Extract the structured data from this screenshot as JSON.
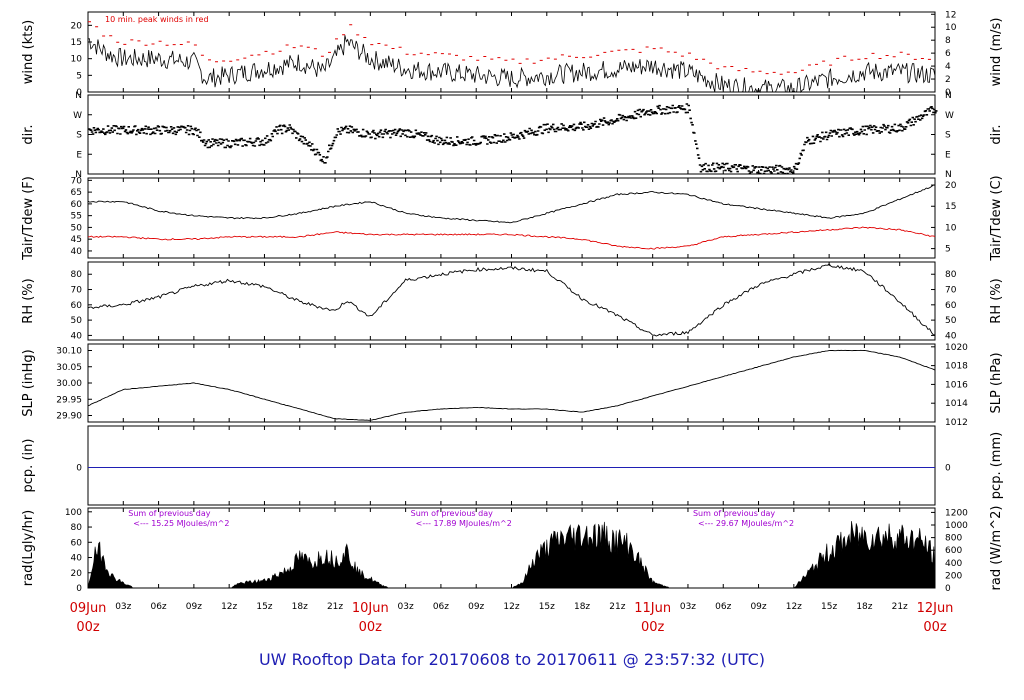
{
  "title": "UW Rooftop Data for 20170608  to  20170611 @ 23:57:32  (UTC)",
  "colors": {
    "black": "#000000",
    "red": "#e00000",
    "blue": "#1f1fb4",
    "purple": "#a000d0",
    "date_red": "#d00000"
  },
  "x_axis": {
    "hour_ticks": [
      "03z",
      "06z",
      "09z",
      "12z",
      "15z",
      "18z",
      "21z",
      "03z",
      "06z",
      "09z",
      "12z",
      "15z",
      "18z",
      "21z",
      "03z",
      "06z",
      "09z",
      "12z",
      "15z",
      "18z",
      "21z"
    ],
    "hour_values": [
      3,
      6,
      9,
      12,
      15,
      18,
      21,
      27,
      30,
      33,
      36,
      39,
      42,
      45,
      51,
      54,
      57,
      60,
      63,
      66,
      69
    ],
    "date_labels": [
      {
        "date": "09Jun",
        "time": "00z",
        "hour": 0
      },
      {
        "date": "10Jun",
        "time": "00z",
        "hour": 24
      },
      {
        "date": "11Jun",
        "time": "00z",
        "hour": 48
      },
      {
        "date": "12Jun",
        "time": "00z",
        "hour": 72
      }
    ]
  },
  "chart_data": [
    {
      "type": "line",
      "id": "wind",
      "ylabel_left": "wind (kts)",
      "ylabel_right": "wind (m/s)",
      "ylim": [
        0,
        24
      ],
      "left_ticks": [
        0,
        5,
        10,
        15,
        20
      ],
      "right_ticks": [
        0,
        2,
        4,
        6,
        8,
        10,
        12
      ],
      "annotation": "10 min. peak winds in red",
      "series": [
        {
          "hours": [
            0,
            1,
            2,
            3,
            6,
            9,
            10,
            12,
            15,
            18,
            20,
            21,
            22,
            24,
            27,
            30,
            36,
            42,
            48,
            51,
            54,
            57,
            60,
            63,
            66,
            69,
            72
          ],
          "values": [
            16,
            13,
            11,
            10,
            10,
            9,
            4,
            5,
            7,
            9,
            6,
            10,
            15,
            10,
            7,
            6,
            4,
            6,
            8,
            6,
            2,
            1,
            1,
            4,
            6,
            6,
            5
          ]
        }
      ]
    },
    {
      "type": "scatter",
      "id": "dir",
      "ylabel_left": "dir.",
      "ylabel_right": "dir.",
      "categories": [
        "N",
        "E",
        "S",
        "W",
        "N"
      ],
      "ylim": [
        0,
        360
      ],
      "series": [
        {
          "hours": [
            0,
            3,
            6,
            9,
            10,
            12,
            15,
            16,
            17,
            18,
            19,
            20,
            21,
            22,
            24,
            27,
            30,
            33,
            36,
            39,
            42,
            45,
            48,
            51,
            52,
            54,
            57,
            60,
            61,
            63,
            66,
            69,
            72
          ],
          "values": [
            200,
            200,
            200,
            200,
            140,
            140,
            150,
            200,
            210,
            160,
            120,
            60,
            190,
            200,
            180,
            190,
            150,
            150,
            170,
            210,
            215,
            250,
            290,
            300,
            30,
            30,
            20,
            20,
            150,
            180,
            200,
            210,
            300
          ]
        }
      ]
    },
    {
      "type": "line",
      "id": "temp",
      "ylabel_left": "Tair/Tdew (F)",
      "ylabel_right": "Tair/Tdew (C)",
      "ylim": [
        37,
        71
      ],
      "left_ticks": [
        40,
        45,
        50,
        55,
        60,
        65,
        70
      ],
      "right_ticks": [
        5,
        10,
        15,
        20
      ],
      "series": [
        {
          "hours": [
            0,
            3,
            6,
            9,
            12,
            15,
            18,
            21,
            24,
            27,
            30,
            33,
            36,
            39,
            42,
            45,
            48,
            51,
            54,
            57,
            60,
            63,
            66,
            69,
            72
          ],
          "values": [
            61,
            61,
            57,
            55,
            54,
            54,
            56,
            59,
            61,
            56,
            54,
            53,
            52,
            56,
            60,
            64,
            65,
            64,
            60,
            58,
            56,
            54,
            56,
            62,
            68
          ]
        },
        {
          "hours": [
            0,
            3,
            6,
            9,
            12,
            15,
            18,
            21,
            24,
            27,
            30,
            33,
            36,
            39,
            42,
            45,
            48,
            51,
            54,
            57,
            60,
            63,
            66,
            69,
            72
          ],
          "values": [
            46,
            46,
            45,
            45,
            46,
            46,
            46,
            48,
            47,
            47,
            47,
            47,
            47,
            46,
            45,
            42,
            41,
            42,
            46,
            47,
            48,
            49,
            50,
            49,
            46
          ]
        }
      ]
    },
    {
      "type": "line",
      "id": "rh",
      "ylabel_left": "RH (%)",
      "ylabel_right": "RH (%)",
      "ylim": [
        37,
        88
      ],
      "left_ticks": [
        40,
        50,
        60,
        70,
        80
      ],
      "right_ticks": [
        40,
        50,
        60,
        70,
        80
      ],
      "series": [
        {
          "hours": [
            0,
            3,
            6,
            9,
            12,
            15,
            18,
            21,
            22,
            24,
            27,
            30,
            33,
            36,
            39,
            42,
            45,
            48,
            51,
            54,
            57,
            60,
            63,
            66,
            69,
            72
          ],
          "values": [
            58,
            60,
            65,
            72,
            76,
            72,
            62,
            56,
            63,
            52,
            76,
            80,
            83,
            84,
            82,
            64,
            53,
            40,
            42,
            60,
            73,
            80,
            86,
            82,
            62,
            40
          ]
        }
      ]
    },
    {
      "type": "line",
      "id": "slp",
      "ylabel_left": "SLP (inHg)",
      "ylabel_right": "SLP (hPa)",
      "ylim": [
        29.88,
        30.12
      ],
      "left_ticks": [
        "29.90",
        "29.95",
        "30.00",
        "30.05",
        "30.10"
      ],
      "right_ticks": [
        "1012",
        "1014",
        "1016",
        "1018",
        "1020"
      ],
      "series": [
        {
          "hours": [
            0,
            3,
            6,
            9,
            12,
            15,
            18,
            21,
            24,
            27,
            30,
            33,
            36,
            39,
            42,
            45,
            48,
            51,
            54,
            57,
            60,
            63,
            66,
            69,
            72
          ],
          "values": [
            29.93,
            29.98,
            29.99,
            30.0,
            29.98,
            29.95,
            29.92,
            29.89,
            29.885,
            29.91,
            29.92,
            29.925,
            29.92,
            29.92,
            29.91,
            29.93,
            29.96,
            29.99,
            30.02,
            30.05,
            30.08,
            30.1,
            30.1,
            30.08,
            30.04
          ]
        }
      ]
    },
    {
      "type": "line",
      "id": "pcp",
      "ylabel_left": "pcp. (in)",
      "ylabel_right": "pcp. (mm)",
      "left_ticks": [
        0
      ],
      "right_ticks": [
        0
      ],
      "series": [
        {
          "hours": [
            0,
            72
          ],
          "values": [
            0,
            0
          ]
        }
      ]
    },
    {
      "type": "area",
      "id": "rad",
      "ylabel_left": "rad(Lgly/hr)",
      "ylabel_right": "rad (W/m^2)",
      "ylim": [
        0,
        105
      ],
      "left_ticks": [
        0,
        20,
        40,
        60,
        80,
        100
      ],
      "right_ticks": [
        0,
        200,
        400,
        600,
        800,
        1000,
        1200
      ],
      "daily_notes": [
        {
          "hour": 3,
          "line1": "Sum of previous day",
          "line2": "<--- 15.25 MJoules/m^2"
        },
        {
          "hour": 27,
          "line1": "Sum of previous day",
          "line2": "<--- 17.89 MJoules/m^2"
        },
        {
          "hour": 51,
          "line1": "Sum of previous day",
          "line2": "<--- 29.67 MJoules/m^2"
        }
      ],
      "series": [
        {
          "hours": [
            0,
            0.5,
            1,
            2,
            3,
            4,
            12,
            13,
            15,
            17,
            18,
            19,
            20,
            21,
            22,
            23,
            24,
            25,
            26,
            36,
            37,
            38,
            40,
            42,
            44,
            46,
            47,
            48,
            49,
            50,
            60,
            61,
            63,
            65,
            67,
            69,
            71,
            72
          ],
          "values": [
            0,
            50,
            60,
            20,
            8,
            0,
            0,
            8,
            12,
            30,
            50,
            40,
            55,
            45,
            60,
            25,
            15,
            4,
            0,
            0,
            10,
            50,
            80,
            88,
            85,
            70,
            40,
            10,
            3,
            0,
            0,
            20,
            60,
            85,
            85,
            85,
            75,
            50
          ]
        }
      ]
    }
  ]
}
